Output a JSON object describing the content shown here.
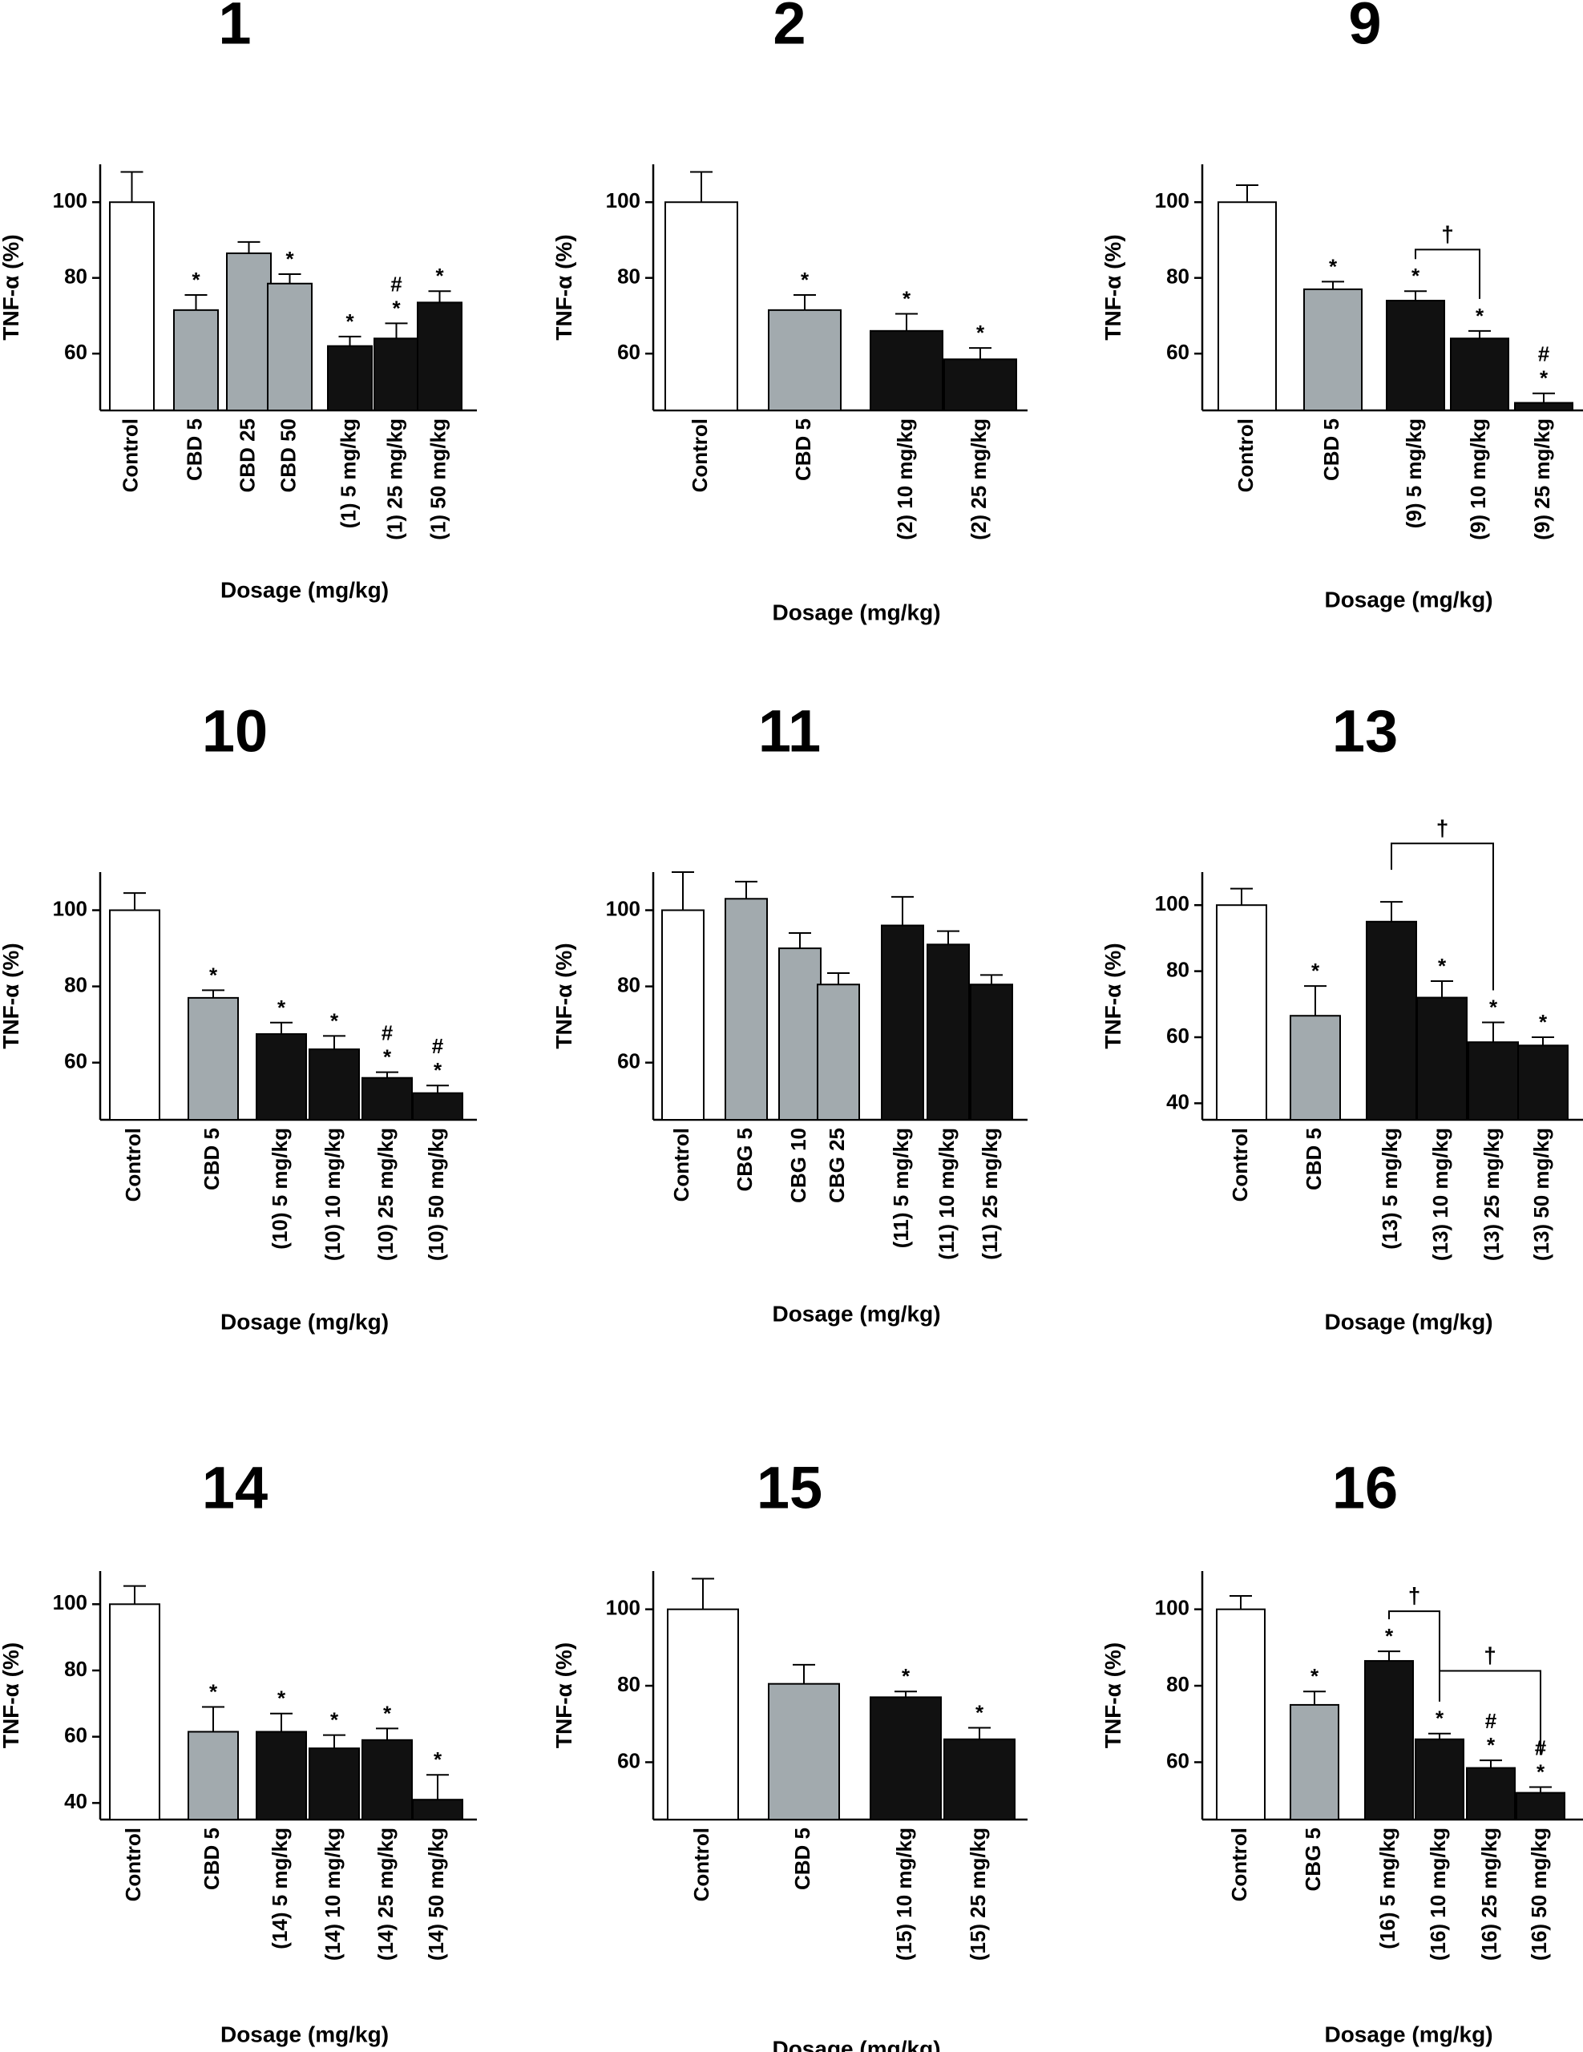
{
  "chart_data": [
    {
      "type": "bar",
      "title": "1",
      "ylabel": "TNF-α (%)",
      "xlabel": "Dosage (mg/kg)",
      "ylim": [
        45,
        110
      ],
      "yticks": [
        60,
        80,
        100
      ],
      "categories": [
        "Control",
        "CBD 5",
        "CBD 25",
        "CBD 50",
        "(1) 5 mg/kg",
        "(1) 25 mg/kg",
        "(1) 50 mg/kg"
      ],
      "values": [
        100,
        71.5,
        86.5,
        78.5,
        62,
        64,
        73.5
      ],
      "errors": [
        8,
        4,
        3,
        2.5,
        2.5,
        4,
        3
      ],
      "groups": [
        "control",
        "reference",
        "reference",
        "reference",
        "compound",
        "compound",
        "compound"
      ],
      "annotations": [
        [],
        [
          "*"
        ],
        [],
        [
          "*"
        ],
        [
          "*"
        ],
        [
          "*",
          "#"
        ],
        [
          "*"
        ]
      ],
      "brackets": []
    },
    {
      "type": "bar",
      "title": "2",
      "ylabel": "TNF-α (%)",
      "xlabel": "Dosage (mg/kg)",
      "ylim": [
        45,
        110
      ],
      "yticks": [
        60,
        80,
        100
      ],
      "categories": [
        "Control",
        "CBD 5",
        "(2) 10 mg/kg",
        "(2) 25 mg/kg"
      ],
      "values": [
        100,
        71.5,
        66,
        58.5
      ],
      "errors": [
        8,
        4,
        4.5,
        3
      ],
      "groups": [
        "control",
        "reference",
        "compound",
        "compound"
      ],
      "annotations": [
        [],
        [
          "*"
        ],
        [
          "*"
        ],
        [
          "*"
        ]
      ],
      "brackets": []
    },
    {
      "type": "bar",
      "title": "9",
      "ylabel": "TNF-α (%)",
      "xlabel": "Dosage (mg/kg)",
      "ylim": [
        45,
        110
      ],
      "yticks": [
        60,
        80,
        100
      ],
      "categories": [
        "Control",
        "CBD 5",
        "(9) 5 mg/kg",
        "(9) 10 mg/kg",
        "(9) 25 mg/kg"
      ],
      "values": [
        100,
        77,
        74,
        64,
        47
      ],
      "errors": [
        4.5,
        2,
        2.5,
        2,
        2.5
      ],
      "groups": [
        "control",
        "reference",
        "compound",
        "compound",
        "compound"
      ],
      "annotations": [
        [],
        [
          "*"
        ],
        [
          "*"
        ],
        [
          "*"
        ],
        [
          "*",
          "#"
        ]
      ],
      "brackets": [
        {
          "from": 2,
          "to": 3,
          "symbol": "†",
          "y": 93
        }
      ]
    },
    {
      "type": "bar",
      "title": "10",
      "ylabel": "TNF-α (%)",
      "xlabel": "Dosage (mg/kg)",
      "ylim": [
        45,
        110
      ],
      "yticks": [
        60,
        80,
        100
      ],
      "categories": [
        "Control",
        "CBD 5",
        "(10) 5 mg/kg",
        "(10) 10 mg/kg",
        "(10) 25 mg/kg",
        "(10) 50 mg/kg"
      ],
      "values": [
        100,
        77,
        67.5,
        63.5,
        56,
        52
      ],
      "errors": [
        4.5,
        2,
        3,
        3.5,
        1.5,
        2
      ],
      "groups": [
        "control",
        "reference",
        "compound",
        "compound",
        "compound",
        "compound"
      ],
      "annotations": [
        [],
        [
          "*"
        ],
        [
          "*"
        ],
        [
          "*"
        ],
        [
          "*",
          "#"
        ],
        [
          "*",
          "#"
        ]
      ],
      "brackets": []
    },
    {
      "type": "bar",
      "title": "11",
      "ylabel": "TNF-α (%)",
      "xlabel": "Dosage (mg/kg)",
      "ylim": [
        45,
        110
      ],
      "yticks": [
        60,
        80,
        100
      ],
      "categories": [
        "Control",
        "CBG 5",
        "CBG 10",
        "CBG 25",
        "(11) 5 mg/kg",
        "(11) 10 mg/kg",
        "(11) 25 mg/kg"
      ],
      "values": [
        100,
        103,
        90,
        80.5,
        96,
        91,
        80.5
      ],
      "errors": [
        10,
        4.5,
        4,
        3,
        7.5,
        3.5,
        2.5
      ],
      "groups": [
        "control",
        "reference",
        "reference",
        "reference",
        "compound",
        "compound",
        "compound"
      ],
      "annotations": [
        [],
        [],
        [],
        [],
        [],
        [],
        []
      ],
      "brackets": []
    },
    {
      "type": "bar",
      "title": "13",
      "ylabel": "TNF-α (%)",
      "xlabel": "Dosage (mg/kg)",
      "ylim": [
        35,
        110
      ],
      "yticks": [
        40,
        60,
        80,
        100
      ],
      "categories": [
        "Control",
        "CBD 5",
        "(13) 5 mg/kg",
        "(13) 10 mg/kg",
        "(13) 25 mg/kg",
        "(13) 50 mg/kg"
      ],
      "values": [
        100,
        66.5,
        95,
        72,
        58.5,
        57.5
      ],
      "errors": [
        5,
        9,
        6,
        5,
        6,
        2.5
      ],
      "groups": [
        "control",
        "reference",
        "compound",
        "compound",
        "compound",
        "compound"
      ],
      "annotations": [
        [],
        [
          "*"
        ],
        [],
        [
          "*"
        ],
        [
          "*"
        ],
        [
          "*"
        ]
      ],
      "brackets": [
        {
          "from": 2,
          "to": 4,
          "symbol": "†",
          "y": 128
        }
      ]
    },
    {
      "type": "bar",
      "title": "14",
      "ylabel": "TNF-α (%)",
      "xlabel": "Dosage (mg/kg)",
      "ylim": [
        35,
        110
      ],
      "yticks": [
        40,
        60,
        80,
        100
      ],
      "categories": [
        "Control",
        "CBD 5",
        "(14) 5 mg/kg",
        "(14) 10 mg/kg",
        "(14) 25 mg/kg",
        "(14) 50 mg/kg"
      ],
      "values": [
        100,
        61.5,
        61.5,
        56.5,
        59,
        41
      ],
      "errors": [
        5.5,
        7.5,
        5.5,
        4,
        3.5,
        7.5
      ],
      "groups": [
        "control",
        "reference",
        "compound",
        "compound",
        "compound",
        "compound"
      ],
      "annotations": [
        [],
        [
          "*"
        ],
        [
          "*"
        ],
        [
          "*"
        ],
        [
          "*"
        ],
        [
          "*"
        ]
      ],
      "brackets": []
    },
    {
      "type": "bar",
      "title": "15",
      "ylabel": "TNF-α (%)",
      "xlabel": "Dosage (mg/kg)",
      "ylim": [
        45,
        110
      ],
      "yticks": [
        60,
        80,
        100
      ],
      "categories": [
        "Control",
        "CBD 5",
        "(15) 10 mg/kg",
        "(15) 25 mg/kg"
      ],
      "values": [
        100,
        80.5,
        77,
        66
      ],
      "errors": [
        8,
        5,
        1.5,
        3
      ],
      "groups": [
        "control",
        "reference",
        "compound",
        "compound"
      ],
      "annotations": [
        [],
        [],
        [
          "*"
        ],
        [
          "*"
        ]
      ],
      "brackets": []
    },
    {
      "type": "bar",
      "title": "16",
      "ylabel": "TNF-α (%)",
      "xlabel": "Dosage (mg/kg)",
      "ylim": [
        45,
        110
      ],
      "yticks": [
        60,
        80,
        100
      ],
      "categories": [
        "Control",
        "CBG 5",
        "(16) 5 mg/kg",
        "(16) 10 mg/kg",
        "(16) 25 mg/kg",
        "(16) 50 mg/kg"
      ],
      "values": [
        100,
        75,
        86.5,
        66,
        58.5,
        52
      ],
      "errors": [
        3.5,
        3.5,
        2.5,
        1.5,
        2,
        1.5
      ],
      "groups": [
        "control",
        "reference",
        "compound",
        "compound",
        "compound",
        "compound"
      ],
      "annotations": [
        [],
        [
          "*"
        ],
        [
          "*"
        ],
        [
          "*"
        ],
        [
          "*",
          "#"
        ],
        [
          "*",
          "#"
        ]
      ],
      "brackets": [
        {
          "from": 2,
          "to": 3,
          "symbol": "†",
          "y": 90
        },
        {
          "from": 3,
          "to": 5,
          "symbol": "†",
          "y": 137
        }
      ]
    }
  ],
  "colors": {
    "control": "#ffffff",
    "reference": "#a2aaae",
    "compound": "#111111",
    "axis": "#000000"
  }
}
